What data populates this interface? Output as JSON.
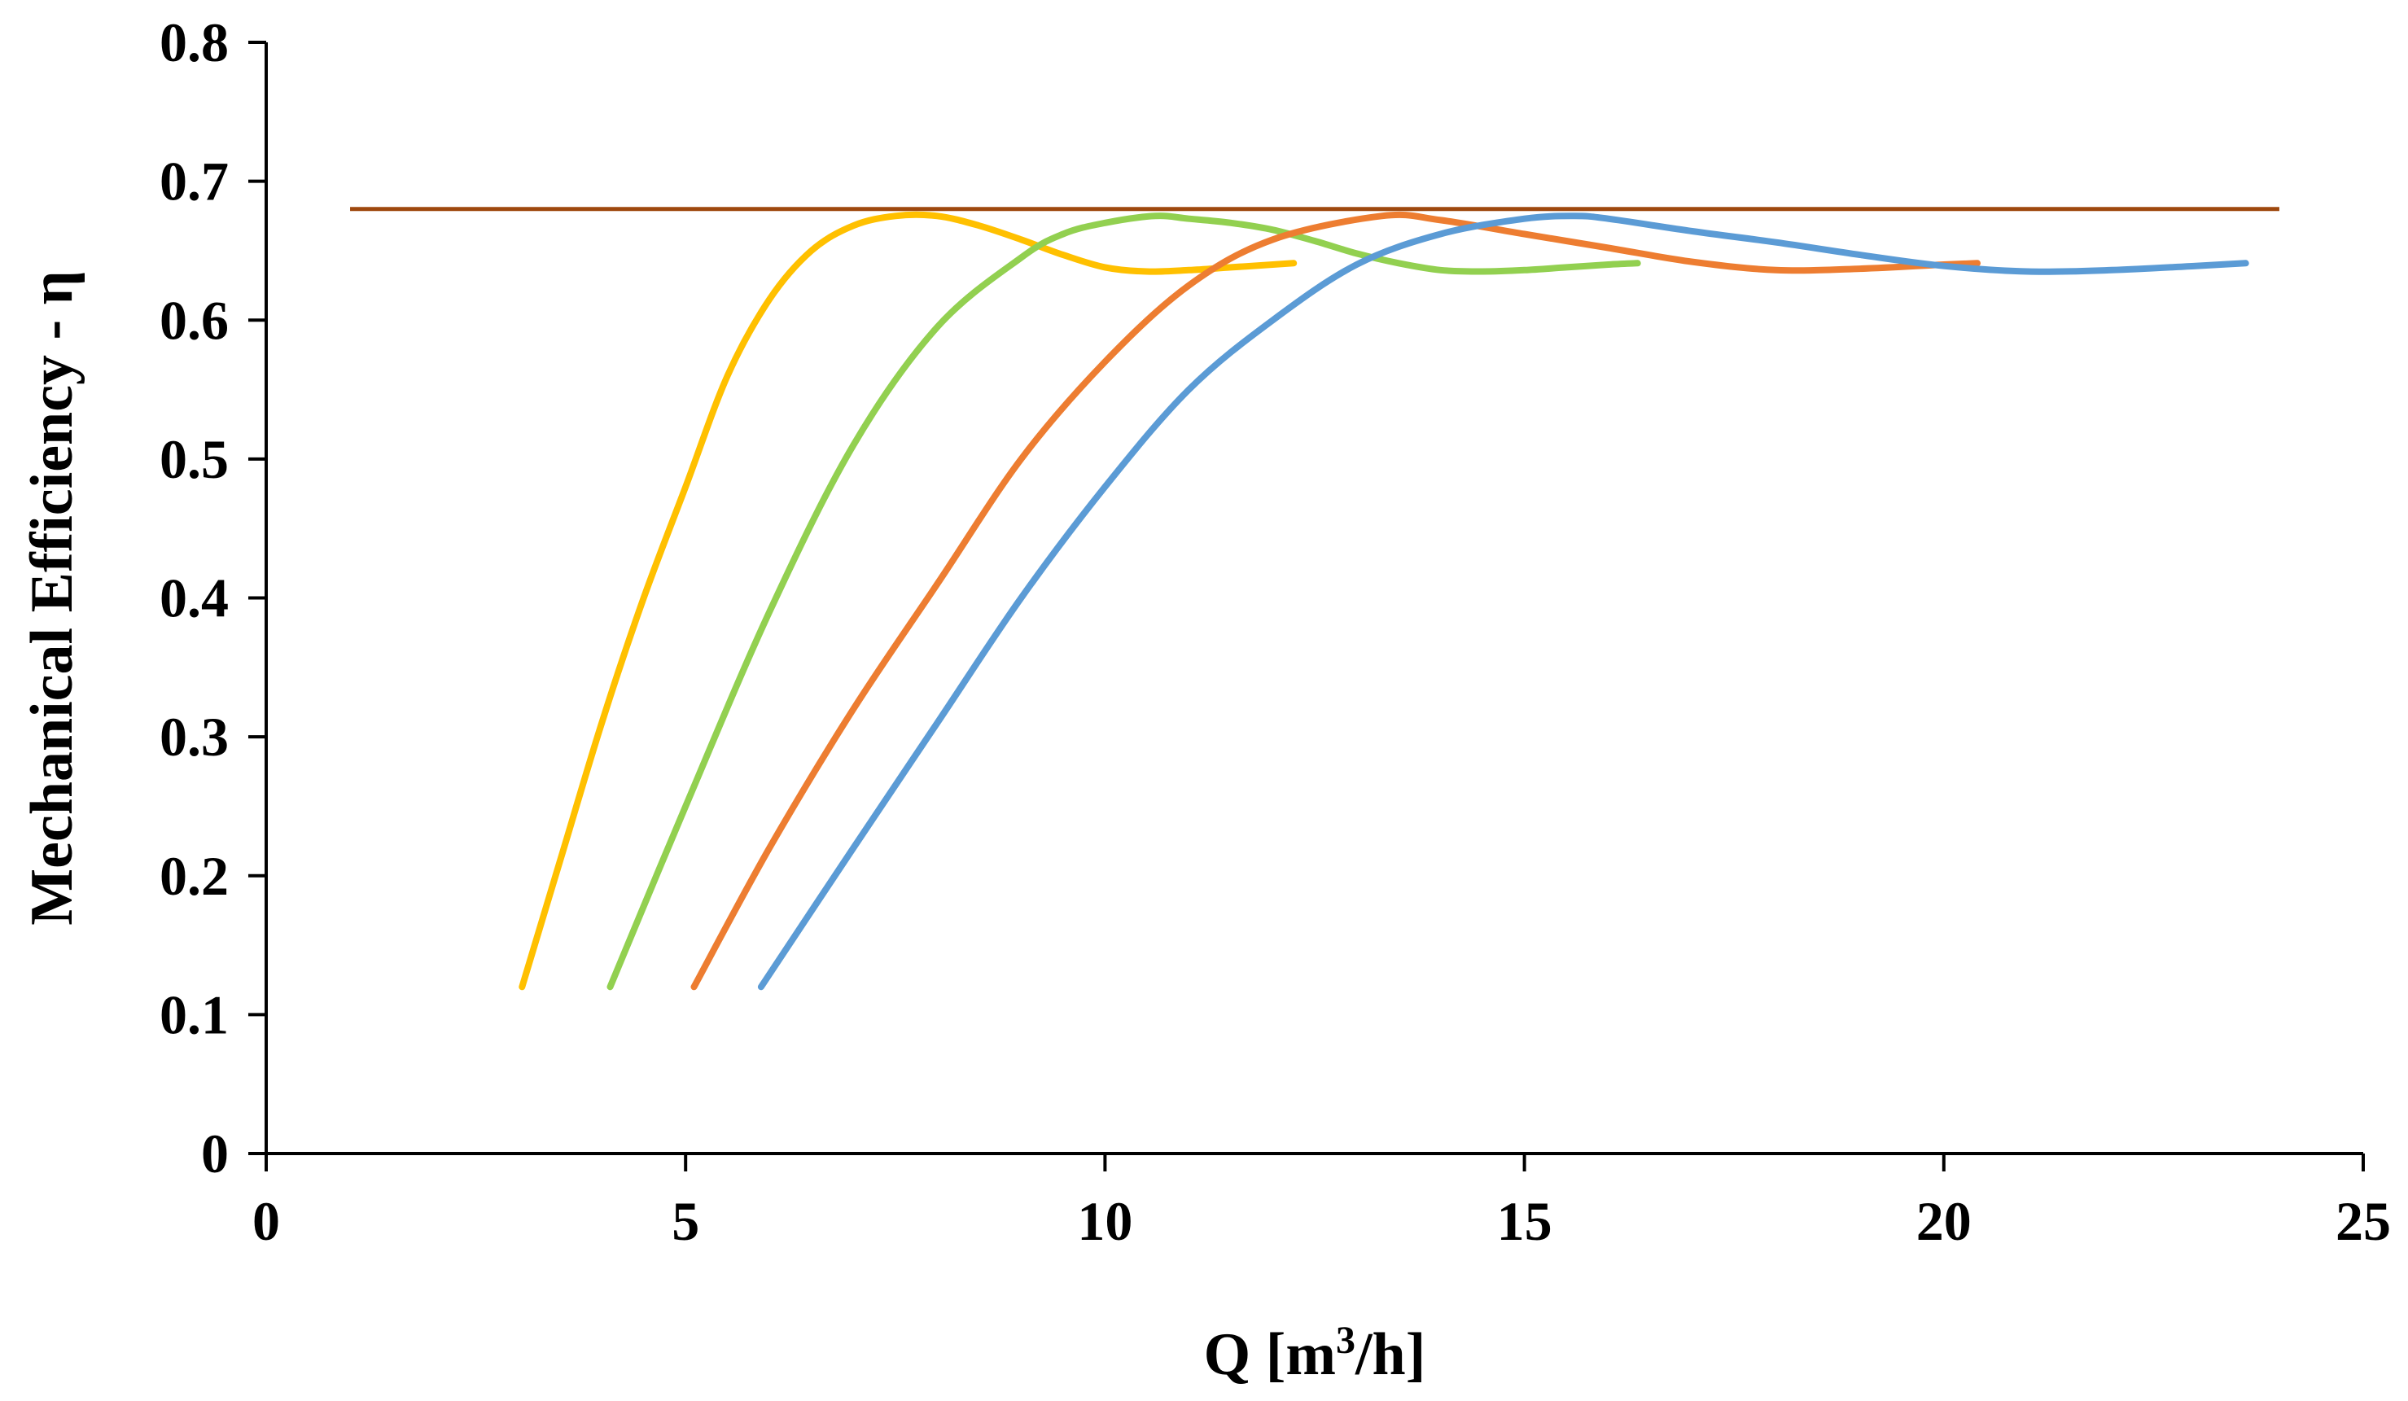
{
  "chart_data": {
    "type": "line",
    "title": "",
    "xlabel": "Q [m",
    "xlabel_sup": "3",
    "xlabel_suffix": "/h]",
    "ylabel": "Mechanical Efficiency - η",
    "xlim": [
      0,
      25
    ],
    "ylim": [
      0,
      0.8
    ],
    "xticks": [
      0,
      5,
      10,
      15,
      20,
      25
    ],
    "yticks": [
      0,
      0.1,
      0.2,
      0.3,
      0.4,
      0.5,
      0.6,
      0.7,
      0.8
    ],
    "xtick_labels": [
      "0",
      "5",
      "10",
      "15",
      "20",
      "25"
    ],
    "ytick_labels": [
      "0",
      "0.1",
      "0.2",
      "0.3",
      "0.4",
      "0.5",
      "0.6",
      "0.7",
      "0.8"
    ],
    "grid": false,
    "legend": "none",
    "series": [
      {
        "name": "reference",
        "color": "#9e480e",
        "style": "reference",
        "x": [
          1.0,
          24.0
        ],
        "y": [
          0.68,
          0.68
        ]
      },
      {
        "name": "yellow",
        "color": "#ffc000",
        "x": [
          3.05,
          3.5,
          4.0,
          4.5,
          5.0,
          5.5,
          6.0,
          6.5,
          7.0,
          7.5,
          8.0,
          8.5,
          9.0,
          9.5,
          10.0,
          10.5,
          11.0,
          11.5,
          12.0,
          12.25
        ],
        "y": [
          0.12,
          0.21,
          0.31,
          0.4,
          0.48,
          0.56,
          0.615,
          0.65,
          0.668,
          0.675,
          0.675,
          0.668,
          0.658,
          0.647,
          0.638,
          0.635,
          0.636,
          0.638,
          0.64,
          0.641
        ]
      },
      {
        "name": "green",
        "color": "#92d050",
        "x": [
          4.1,
          5.0,
          6.0,
          7.0,
          8.0,
          9.0,
          9.5,
          10.0,
          10.6,
          11.0,
          11.5,
          12.0,
          12.5,
          13.0,
          13.5,
          14.0,
          14.5,
          15.0,
          15.5,
          16.0,
          16.35
        ],
        "y": [
          0.12,
          0.25,
          0.39,
          0.51,
          0.595,
          0.645,
          0.662,
          0.67,
          0.675,
          0.673,
          0.67,
          0.665,
          0.657,
          0.648,
          0.641,
          0.636,
          0.635,
          0.636,
          0.638,
          0.64,
          0.641
        ]
      },
      {
        "name": "orange",
        "color": "#ed7d31",
        "x": [
          5.1,
          6.0,
          7.0,
          8.0,
          9.0,
          10.0,
          11.0,
          12.0,
          13.3,
          14.0,
          15.0,
          16.0,
          17.0,
          18.0,
          19.0,
          20.0,
          20.4
        ],
        "y": [
          0.12,
          0.22,
          0.32,
          0.41,
          0.5,
          0.57,
          0.625,
          0.658,
          0.675,
          0.672,
          0.662,
          0.652,
          0.642,
          0.636,
          0.637,
          0.64,
          0.641
        ]
      },
      {
        "name": "blue",
        "color": "#5b9bd5",
        "x": [
          5.9,
          7.0,
          8.0,
          9.0,
          10.0,
          11.0,
          12.0,
          13.0,
          14.0,
          15.0,
          15.6,
          16.0,
          17.0,
          18.0,
          19.0,
          20.0,
          21.0,
          22.0,
          23.0,
          23.6
        ],
        "y": [
          0.12,
          0.22,
          0.31,
          0.4,
          0.48,
          0.55,
          0.6,
          0.64,
          0.662,
          0.673,
          0.675,
          0.673,
          0.664,
          0.656,
          0.647,
          0.639,
          0.635,
          0.636,
          0.639,
          0.641
        ]
      }
    ]
  }
}
